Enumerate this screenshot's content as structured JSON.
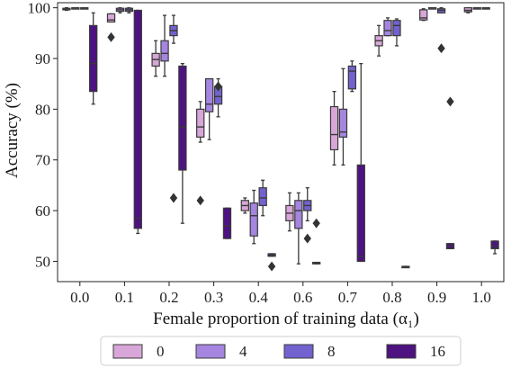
{
  "chart_data": {
    "type": "box",
    "xlabel": "Female proportion of training data (α₁)",
    "ylabel": "Accuracy (%)",
    "ylim": [
      46,
      101
    ],
    "yticks": [
      50,
      60,
      70,
      80,
      90,
      100
    ],
    "categories": [
      "0.0",
      "0.1",
      "0.2",
      "0.3",
      "0.4",
      "0.6",
      "0.7",
      "0.8",
      "0.9",
      "1.0"
    ],
    "legend_position": "bottom",
    "series": [
      {
        "name": "0",
        "color": "#d8a6d8",
        "boxes": [
          {
            "whislo": 99.5,
            "q1": 99.6,
            "med": 99.8,
            "q3": 99.9,
            "whishi": 100,
            "fliers": []
          },
          {
            "whislo": 97.2,
            "q1": 97.2,
            "med": 97.6,
            "q3": 98.8,
            "whishi": 98.8,
            "fliers": [
              94.2
            ]
          },
          {
            "whislo": 86.5,
            "q1": 88.5,
            "med": 89.8,
            "q3": 91.0,
            "whishi": 93.5,
            "fliers": []
          },
          {
            "whislo": 73.5,
            "q1": 74.5,
            "med": 76.5,
            "q3": 80.0,
            "whishi": 81.5,
            "fliers": [
              62.0
            ]
          },
          {
            "whislo": 59.5,
            "q1": 60.0,
            "med": 61.0,
            "q3": 62.0,
            "whishi": 62.5,
            "fliers": []
          },
          {
            "whislo": 56.0,
            "q1": 58.0,
            "med": 59.5,
            "q3": 61.0,
            "whishi": 63.5,
            "fliers": []
          },
          {
            "whislo": 69.0,
            "q1": 72.0,
            "med": 75.0,
            "q3": 80.5,
            "whishi": 83.5,
            "fliers": []
          },
          {
            "whislo": 90.5,
            "q1": 92.5,
            "med": 93.5,
            "q3": 94.5,
            "whishi": 96.5,
            "fliers": []
          },
          {
            "whislo": 97.5,
            "q1": 97.6,
            "med": 98.0,
            "q3": 99.6,
            "whishi": 99.8,
            "fliers": []
          },
          {
            "whislo": 99.0,
            "q1": 99.2,
            "med": 99.5,
            "q3": 100,
            "whishi": 100,
            "fliers": []
          }
        ]
      },
      {
        "name": "4",
        "color": "#a585e0",
        "boxes": [
          {
            "whislo": 100,
            "q1": 100,
            "med": 100,
            "q3": 100,
            "whishi": 100,
            "fliers": []
          },
          {
            "whislo": 99.0,
            "q1": 99.3,
            "med": 99.6,
            "q3": 99.9,
            "whishi": 100,
            "fliers": []
          },
          {
            "whislo": 86.5,
            "q1": 89.5,
            "med": 91.0,
            "q3": 93.5,
            "whishi": 98.5,
            "fliers": []
          },
          {
            "whislo": 74.0,
            "q1": 79.5,
            "med": 81.0,
            "q3": 86.0,
            "whishi": 86.0,
            "fliers": []
          },
          {
            "whislo": 53.5,
            "q1": 55.0,
            "med": 59.0,
            "q3": 61.5,
            "whishi": 64.0,
            "fliers": []
          },
          {
            "whislo": 49.5,
            "q1": 56.5,
            "med": 60.0,
            "q3": 62.0,
            "whishi": 63.5,
            "fliers": []
          },
          {
            "whislo": 69.0,
            "q1": 74.5,
            "med": 75.5,
            "q3": 80.0,
            "whishi": 88.0,
            "fliers": []
          },
          {
            "whislo": 94.5,
            "q1": 94.5,
            "med": 95.5,
            "q3": 97.5,
            "whishi": 98.0,
            "fliers": []
          },
          {
            "whislo": 100,
            "q1": 100,
            "med": 100,
            "q3": 100,
            "whishi": 100,
            "fliers": []
          },
          {
            "whislo": 100,
            "q1": 100,
            "med": 100,
            "q3": 100,
            "whishi": 100,
            "fliers": []
          }
        ]
      },
      {
        "name": "8",
        "color": "#7262cf",
        "boxes": [
          {
            "whislo": 100,
            "q1": 100,
            "med": 100,
            "q3": 100,
            "whishi": 100,
            "fliers": []
          },
          {
            "whislo": 99.0,
            "q1": 99.3,
            "med": 99.6,
            "q3": 99.9,
            "whishi": 100,
            "fliers": []
          },
          {
            "whislo": 93.0,
            "q1": 94.5,
            "med": 95.5,
            "q3": 96.5,
            "whishi": 98.5,
            "fliers": [
              62.5
            ]
          },
          {
            "whislo": 78.5,
            "q1": 81.0,
            "med": 82.5,
            "q3": 84.5,
            "whishi": 86.0,
            "fliers": [
              84.5
            ]
          },
          {
            "whislo": 59.0,
            "q1": 61.0,
            "med": 62.5,
            "q3": 64.5,
            "whishi": 66.0,
            "fliers": []
          },
          {
            "whislo": 58.0,
            "q1": 60.0,
            "med": 61.0,
            "q3": 62.0,
            "whishi": 64.5,
            "fliers": [
              54.5
            ]
          },
          {
            "whislo": 83.5,
            "q1": 84.0,
            "med": 87.5,
            "q3": 88.5,
            "whishi": 89.5,
            "fliers": []
          },
          {
            "whislo": 92.5,
            "q1": 94.5,
            "med": 96.5,
            "q3": 97.5,
            "whishi": 97.8,
            "fliers": []
          },
          {
            "whislo": 99.0,
            "q1": 99.0,
            "med": 99.5,
            "q3": 99.8,
            "whishi": 100,
            "fliers": [
              92.0
            ]
          },
          {
            "whislo": 100,
            "q1": 100,
            "med": 100,
            "q3": 100,
            "whishi": 100,
            "fliers": []
          }
        ]
      },
      {
        "name": "16",
        "color": "#4d1380",
        "boxes": [
          {
            "whislo": 81.0,
            "q1": 83.5,
            "med": 89.0,
            "q3": 96.5,
            "whishi": 99.0,
            "fliers": []
          },
          {
            "whislo": 55.5,
            "q1": 56.5,
            "med": 58.5,
            "q3": 99.5,
            "whishi": 99.5,
            "fliers": []
          },
          {
            "whislo": 57.5,
            "q1": 68.0,
            "med": 76.5,
            "q3": 88.5,
            "whishi": 89.0,
            "fliers": []
          },
          {
            "whislo": 54.5,
            "q1": 54.5,
            "med": 57.0,
            "q3": 60.5,
            "whishi": 60.5,
            "fliers": []
          },
          {
            "whislo": 51.0,
            "q1": 51.0,
            "med": 51.2,
            "q3": 51.5,
            "whishi": 51.5,
            "fliers": [
              49.0
            ]
          },
          {
            "whislo": 49.5,
            "q1": 49.5,
            "med": 49.6,
            "q3": 49.8,
            "whishi": 49.8,
            "fliers": [
              57.5
            ]
          },
          {
            "whislo": 50.0,
            "q1": 50.0,
            "med": 51.0,
            "q3": 69.0,
            "whishi": 89.0,
            "fliers": []
          },
          {
            "whislo": 49.0,
            "q1": 49.0,
            "med": 49.0,
            "q3": 49.0,
            "whishi": 49.0,
            "fliers": []
          },
          {
            "whislo": 52.5,
            "q1": 52.5,
            "med": 53.0,
            "q3": 53.5,
            "whishi": 53.5,
            "fliers": [
              81.5
            ]
          },
          {
            "whislo": 51.5,
            "q1": 52.5,
            "med": 53.0,
            "q3": 54.0,
            "whishi": 54.0,
            "fliers": []
          }
        ]
      }
    ]
  }
}
